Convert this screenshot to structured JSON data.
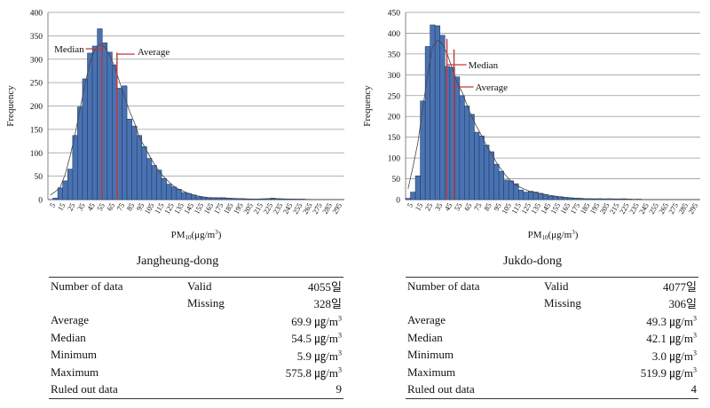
{
  "chart_data": [
    {
      "type": "bar",
      "title": "Jangheung-dong",
      "xlabel_main": "PM",
      "xlabel_sub": "10",
      "xlabel_unit": "(μg/m",
      "xlabel_sup": "3",
      "xlabel_close": ")",
      "ylabel": "Frequency",
      "ylim": [
        0,
        400
      ],
      "yticks": [
        0,
        50,
        100,
        150,
        200,
        250,
        300,
        350,
        400
      ],
      "xlim": [
        0,
        300
      ],
      "bin_width": 5,
      "xtick_labels": [
        "5",
        "15",
        "25",
        "35",
        "45",
        "55",
        "65",
        "75",
        "85",
        "95",
        "105",
        "115",
        "125",
        "135",
        "145",
        "155",
        "165",
        "175",
        "185",
        "195",
        "205",
        "215",
        "225",
        "235",
        "245",
        "255",
        "265",
        "275",
        "285",
        "295"
      ],
      "values": [
        0,
        3,
        25,
        40,
        65,
        137,
        198,
        258,
        313,
        328,
        365,
        335,
        315,
        288,
        238,
        243,
        172,
        157,
        137,
        113,
        88,
        73,
        63,
        45,
        33,
        27,
        22,
        15,
        13,
        10,
        6,
        5,
        4,
        3,
        4,
        4,
        3,
        2,
        2,
        2,
        1,
        1,
        1,
        1,
        2,
        3,
        2,
        1,
        1,
        1,
        1,
        1,
        0,
        0,
        0,
        0,
        0,
        0,
        0,
        0
      ],
      "median": 54.5,
      "average": 69.9,
      "median_label": "Median",
      "average_label": "Average"
    },
    {
      "type": "bar",
      "title": "Jukdo-dong",
      "xlabel_main": "PM",
      "xlabel_sub": "10",
      "xlabel_unit": "(μg/m",
      "xlabel_sup": "3",
      "xlabel_close": ")",
      "ylabel": "Frequency",
      "ylim": [
        0,
        450
      ],
      "yticks": [
        0,
        50,
        100,
        150,
        200,
        250,
        300,
        350,
        400,
        450
      ],
      "xlim": [
        0,
        300
      ],
      "bin_width": 5,
      "xtick_labels": [
        "5",
        "15",
        "25",
        "35",
        "45",
        "55",
        "65",
        "75",
        "85",
        "95",
        "105",
        "115",
        "125",
        "135",
        "145",
        "155",
        "165",
        "175",
        "185",
        "195",
        "205",
        "215",
        "225",
        "235",
        "245",
        "255",
        "265",
        "275",
        "285",
        "295"
      ],
      "values": [
        3,
        18,
        57,
        237,
        368,
        420,
        418,
        395,
        320,
        318,
        295,
        250,
        225,
        205,
        162,
        153,
        131,
        115,
        85,
        68,
        47,
        45,
        38,
        23,
        18,
        20,
        18,
        15,
        12,
        8,
        8,
        7,
        5,
        4,
        3,
        3,
        2,
        2,
        1,
        2,
        1,
        2,
        1,
        1,
        2,
        1,
        0,
        1,
        0,
        0,
        0,
        0,
        0,
        0,
        0,
        0,
        0,
        0,
        0,
        0
      ],
      "median": 42.1,
      "average": 49.3,
      "median_label": "Median",
      "average_label": "Average"
    }
  ],
  "tables": [
    {
      "title": "Jangheung-dong",
      "rows": [
        {
          "c1": "Number of data",
          "c2": "Valid",
          "c3": "4055일",
          "sup": ""
        },
        {
          "c1": "",
          "c2": "Missing",
          "c3": "328일",
          "sup": ""
        },
        {
          "c1": "Average",
          "c2": "",
          "c3": "69.9 ㎍/m",
          "sup": "3"
        },
        {
          "c1": "Median",
          "c2": "",
          "c3": "54.5 ㎍/m",
          "sup": "3"
        },
        {
          "c1": "Minimum",
          "c2": "",
          "c3": "5.9 ㎍/m",
          "sup": "3"
        },
        {
          "c1": "Maximum",
          "c2": "",
          "c3": "575.8 ㎍/m",
          "sup": "3"
        },
        {
          "c1": "Ruled out data",
          "c2": "",
          "c3": "9",
          "sup": ""
        }
      ]
    },
    {
      "title": "Jukdo-dong",
      "rows": [
        {
          "c1": "Number of data",
          "c2": "Valid",
          "c3": "4077일",
          "sup": ""
        },
        {
          "c1": "",
          "c2": "Missing",
          "c3": "306일",
          "sup": ""
        },
        {
          "c1": "Average",
          "c2": "",
          "c3": "49.3 ㎍/m",
          "sup": "3"
        },
        {
          "c1": "Median",
          "c2": "",
          "c3": "42.1 ㎍/m",
          "sup": "3"
        },
        {
          "c1": "Minimum",
          "c2": "",
          "c3": "3.0 ㎍/m",
          "sup": "3"
        },
        {
          "c1": "Maximum",
          "c2": "",
          "c3": "519.9 ㎍/m",
          "sup": "3"
        },
        {
          "c1": "Ruled out data",
          "c2": "",
          "c3": "4",
          "sup": ""
        }
      ]
    }
  ],
  "colors": {
    "bar_fill": "#4a72b0",
    "bar_stroke": "#1f3f70",
    "grid": "#9a9a9a",
    "marker": "#c0393b",
    "curve": "#444444"
  }
}
